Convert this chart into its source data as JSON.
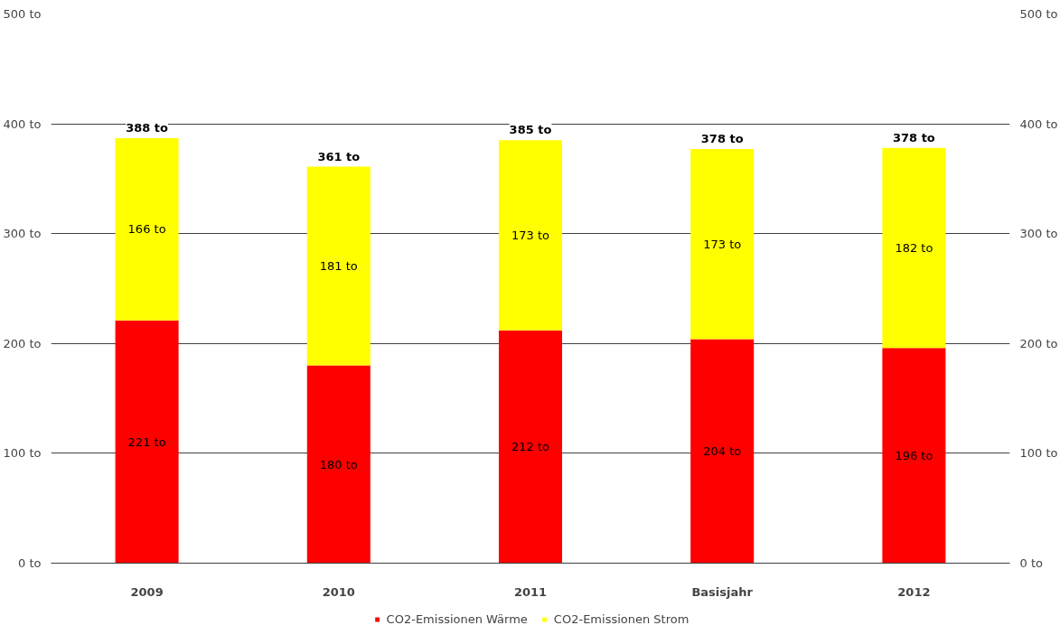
{
  "chart_data": {
    "type": "bar",
    "stacked": true,
    "categories": [
      "2009",
      "2010",
      "2011",
      "Basisjahr",
      "2012"
    ],
    "series": [
      {
        "name": "CO2-Emissionen Wärme",
        "color": "#ff0000",
        "values": [
          221,
          180,
          212,
          204,
          196
        ],
        "value_labels": [
          "221 to",
          "180 to",
          "212 to",
          "204 to",
          "196 to"
        ]
      },
      {
        "name": "CO2-Emissionen Strom",
        "color": "#ffff00",
        "values": [
          166,
          181,
          173,
          173,
          182
        ],
        "value_labels": [
          "166 to",
          "181 to",
          "173 to",
          "173 to",
          "182 to"
        ]
      }
    ],
    "totals": [
      "388 to",
      "361 to",
      "385 to",
      "378 to",
      "378 to"
    ],
    "ylim": [
      0,
      500
    ],
    "yticks": [
      {
        "value": 0,
        "label": "0 to"
      },
      {
        "value": 100,
        "label": "100 to"
      },
      {
        "value": 200,
        "label": "200 to"
      },
      {
        "value": 300,
        "label": "300 to"
      },
      {
        "value": 400,
        "label": "400 to"
      },
      {
        "value": 500,
        "label": "500 to"
      }
    ],
    "y2lim": [
      0,
      500
    ],
    "y2ticks": [
      {
        "value": 0,
        "label": "0 to"
      },
      {
        "value": 100,
        "label": "100 to"
      },
      {
        "value": 200,
        "label": "200 to"
      },
      {
        "value": 300,
        "label": "300 to"
      },
      {
        "value": 400,
        "label": "400 to"
      },
      {
        "value": 500,
        "label": "500 to"
      }
    ],
    "grid": "y",
    "legend": "bottom"
  }
}
